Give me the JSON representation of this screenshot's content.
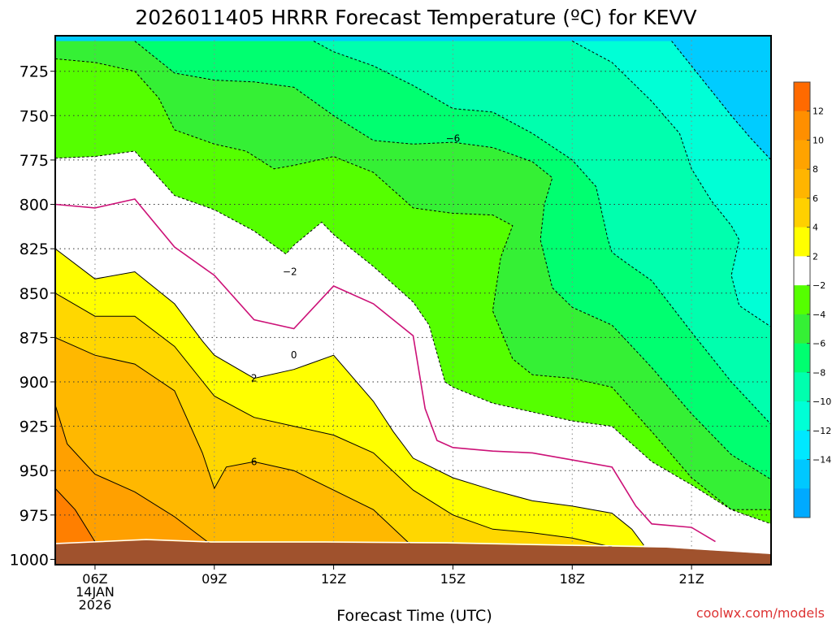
{
  "chart_data": {
    "type": "heatmap",
    "title": "2026011405 HRRR Forecast Temperature (ºC) for KEVV",
    "xlabel": "Forecast Time (UTC)",
    "ylabel": "",
    "x_ticks": [
      {
        "hour": 6,
        "lines": [
          "06Z",
          "14JAN",
          "2026"
        ]
      },
      {
        "hour": 9,
        "lines": [
          "09Z"
        ]
      },
      {
        "hour": 12,
        "lines": [
          "12Z"
        ]
      },
      {
        "hour": 15,
        "lines": [
          "15Z"
        ]
      },
      {
        "hour": 18,
        "lines": [
          "18Z"
        ]
      },
      {
        "hour": 21,
        "lines": [
          "21Z"
        ]
      }
    ],
    "xlim": [
      5,
      23
    ],
    "y_ticks": [
      725,
      750,
      775,
      800,
      825,
      850,
      875,
      900,
      925,
      950,
      975,
      1000
    ],
    "ylim": [
      1003,
      705
    ],
    "grid": true,
    "colorbar": {
      "labels": [
        "12",
        "10",
        "8",
        "6",
        "4",
        "2",
        "−2",
        "−4",
        "−6",
        "−8",
        "−10",
        "−12",
        "−14"
      ],
      "colors": [
        "#ff6a00",
        "#ff8f00",
        "#ffa300",
        "#ffb500",
        "#ffd000",
        "#ffff00",
        "#ffffff",
        "#55ff00",
        "#35f035",
        "#00ff70",
        "#00ffae",
        "#00ffd6",
        "#00e8ff",
        "#00c8ff",
        "#00aaff"
      ]
    },
    "contour_labels": [
      {
        "text": "−6",
        "hour": 15.0,
        "pres": 763
      },
      {
        "text": "−2",
        "hour": 10.9,
        "pres": 838
      },
      {
        "text": "0",
        "hour": 11.0,
        "pres": 885
      },
      {
        "text": "2",
        "hour": 10.0,
        "pres": 898
      },
      {
        "text": "6",
        "hour": 10.0,
        "pres": 945
      }
    ],
    "contours": [
      {
        "level": 0,
        "color": "#cc1177",
        "dashed": false,
        "points": [
          [
            5,
            800
          ],
          [
            6,
            802
          ],
          [
            7,
            797
          ],
          [
            8,
            824
          ],
          [
            9,
            840
          ],
          [
            10,
            865
          ],
          [
            11,
            870
          ],
          [
            12,
            846
          ],
          [
            13,
            856
          ],
          [
            14,
            874
          ],
          [
            14.3,
            915
          ],
          [
            14.6,
            933
          ],
          [
            15,
            937
          ],
          [
            16,
            939
          ],
          [
            17,
            940
          ],
          [
            18,
            944
          ],
          [
            19,
            948
          ],
          [
            19.6,
            970
          ],
          [
            20,
            980
          ],
          [
            21,
            982
          ],
          [
            21.6,
            990
          ]
        ]
      },
      {
        "level": 2,
        "color": "#000000",
        "dashed": false,
        "points": [
          [
            5,
            825
          ],
          [
            6,
            842
          ],
          [
            7,
            838
          ],
          [
            8,
            856
          ],
          [
            8.7,
            877
          ],
          [
            9,
            885
          ],
          [
            10,
            898
          ],
          [
            11,
            893
          ],
          [
            12,
            885
          ],
          [
            13,
            911
          ],
          [
            13.5,
            928
          ],
          [
            14,
            943
          ],
          [
            15,
            954
          ],
          [
            16,
            961
          ],
          [
            17,
            967
          ],
          [
            18,
            970
          ],
          [
            19,
            974
          ],
          [
            19.5,
            983
          ],
          [
            19.8,
            992
          ]
        ]
      },
      {
        "level": 4,
        "color": "#000000",
        "dashed": false,
        "points": [
          [
            5,
            850
          ],
          [
            6,
            863
          ],
          [
            7,
            863
          ],
          [
            8,
            880
          ],
          [
            9,
            908
          ],
          [
            10,
            920
          ],
          [
            11,
            925
          ],
          [
            12,
            930
          ],
          [
            13,
            940
          ],
          [
            14,
            961
          ],
          [
            15,
            975
          ],
          [
            16,
            983
          ],
          [
            17,
            985
          ],
          [
            18,
            988
          ],
          [
            19,
            993
          ]
        ]
      },
      {
        "level": 6,
        "color": "#000000",
        "dashed": false,
        "points": [
          [
            5,
            875
          ],
          [
            6,
            885
          ],
          [
            7,
            890
          ],
          [
            8,
            905
          ],
          [
            8.7,
            940
          ],
          [
            9,
            960
          ],
          [
            9.3,
            948
          ],
          [
            10,
            945
          ],
          [
            11,
            950
          ],
          [
            12,
            961
          ],
          [
            13,
            972
          ],
          [
            14,
            993
          ]
        ]
      },
      {
        "level": 8,
        "color": "#000000",
        "dashed": false,
        "points": [
          [
            5,
            913
          ],
          [
            5.3,
            935
          ],
          [
            6,
            952
          ],
          [
            7,
            962
          ],
          [
            8,
            976
          ],
          [
            9,
            993
          ]
        ]
      },
      {
        "level": 10,
        "color": "#000000",
        "dashed": false,
        "points": [
          [
            5,
            960
          ],
          [
            5.5,
            972
          ],
          [
            6,
            990
          ]
        ]
      },
      {
        "level": -2,
        "color": "#000000",
        "dashed": true,
        "points": [
          [
            5,
            774
          ],
          [
            6,
            773
          ],
          [
            7,
            770
          ],
          [
            8,
            795
          ],
          [
            9,
            803
          ],
          [
            10,
            815
          ],
          [
            10.8,
            828
          ],
          [
            11,
            823
          ],
          [
            11.7,
            810
          ],
          [
            12,
            817
          ],
          [
            13,
            835
          ],
          [
            14,
            855
          ],
          [
            14.4,
            868
          ],
          [
            14.8,
            900
          ],
          [
            15,
            903
          ],
          [
            16,
            912
          ],
          [
            17,
            917
          ],
          [
            18,
            922
          ],
          [
            19,
            925
          ],
          [
            20,
            945
          ],
          [
            21,
            958
          ],
          [
            22,
            972
          ],
          [
            23,
            980
          ]
        ]
      },
      {
        "level": -4,
        "color": "#000000",
        "dashed": true,
        "points": [
          [
            5,
            718
          ],
          [
            6,
            720
          ],
          [
            7,
            725
          ],
          [
            7.6,
            740
          ],
          [
            8,
            758
          ],
          [
            9,
            766
          ],
          [
            9.8,
            770
          ],
          [
            10.5,
            780
          ],
          [
            11,
            778
          ],
          [
            12,
            773
          ],
          [
            13,
            782
          ],
          [
            14,
            802
          ],
          [
            15,
            805
          ],
          [
            16,
            806
          ],
          [
            16.5,
            812
          ],
          [
            16.2,
            830
          ],
          [
            16,
            860
          ],
          [
            16.5,
            887
          ],
          [
            17,
            896
          ],
          [
            18,
            898
          ],
          [
            19,
            903
          ],
          [
            20,
            928
          ],
          [
            21,
            954
          ],
          [
            22,
            972
          ],
          [
            23,
            972
          ]
        ]
      },
      {
        "level": -6,
        "color": "#000000",
        "dashed": true,
        "points": [
          [
            7,
            708
          ],
          [
            8,
            726
          ],
          [
            9,
            730
          ],
          [
            10,
            731
          ],
          [
            11,
            734
          ],
          [
            12,
            750
          ],
          [
            13,
            764
          ],
          [
            14,
            766
          ],
          [
            15,
            765
          ],
          [
            16,
            768
          ],
          [
            17,
            776
          ],
          [
            17.5,
            785
          ],
          [
            17.3,
            800
          ],
          [
            17.2,
            820
          ],
          [
            17.5,
            847
          ],
          [
            18,
            858
          ],
          [
            19,
            868
          ],
          [
            20,
            892
          ],
          [
            21,
            918
          ],
          [
            22,
            941
          ],
          [
            23,
            955
          ]
        ]
      },
      {
        "level": -8,
        "color": "#000000",
        "dashed": true,
        "points": [
          [
            11.5,
            708
          ],
          [
            12,
            714
          ],
          [
            13,
            722
          ],
          [
            14,
            733
          ],
          [
            15,
            746
          ],
          [
            16,
            748
          ],
          [
            17,
            760
          ],
          [
            18,
            775
          ],
          [
            18.6,
            790
          ],
          [
            18.9,
            820
          ],
          [
            19,
            827
          ],
          [
            19.3,
            832
          ],
          [
            20,
            843
          ],
          [
            21,
            872
          ],
          [
            22,
            900
          ],
          [
            23,
            924
          ]
        ]
      },
      {
        "level": -10,
        "color": "#000000",
        "dashed": true,
        "points": [
          [
            18,
            708
          ],
          [
            19,
            720
          ],
          [
            20,
            742
          ],
          [
            20.7,
            760
          ],
          [
            21,
            780
          ],
          [
            21.5,
            798
          ],
          [
            22,
            812
          ],
          [
            22.2,
            820
          ],
          [
            22,
            840
          ],
          [
            22.2,
            857
          ],
          [
            23,
            869
          ]
        ]
      },
      {
        "level": -12,
        "color": "#000000",
        "dashed": true,
        "points": [
          [
            20.5,
            708
          ],
          [
            21,
            722
          ],
          [
            22,
            750
          ],
          [
            22.5,
            763
          ],
          [
            23,
            775
          ]
        ]
      }
    ]
  },
  "page": {
    "credit": "coolwx.com/models"
  }
}
